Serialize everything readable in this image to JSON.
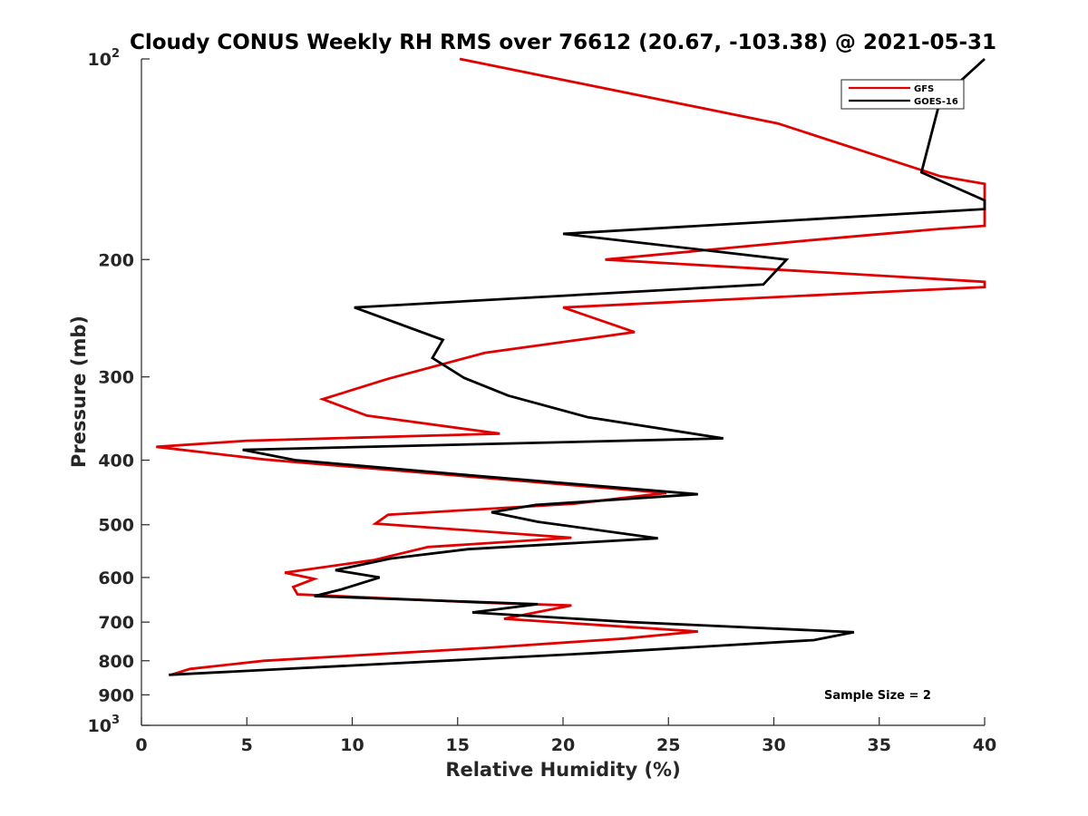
{
  "chart_data": {
    "type": "line",
    "title": "Cloudy CONUS Weekly RH RMS over 76612 (20.67, -103.38) @ 2021-05-31",
    "xlabel": "Relative Humidity (%)",
    "ylabel": "Pressure (mb)",
    "xlim": [
      0,
      40
    ],
    "ylim": [
      100,
      1000
    ],
    "yscale": "log",
    "y_reversed": true,
    "grid": false,
    "legend_position": "top-right",
    "annotation": "Sample Size = 2",
    "x_ticks": [
      {
        "value": 0,
        "label": "0"
      },
      {
        "value": 5,
        "label": "5"
      },
      {
        "value": 10,
        "label": "10"
      },
      {
        "value": 15,
        "label": "15"
      },
      {
        "value": 20,
        "label": "20"
      },
      {
        "value": 25,
        "label": "25"
      },
      {
        "value": 30,
        "label": "30"
      },
      {
        "value": 35,
        "label": "35"
      },
      {
        "value": 40,
        "label": "40"
      }
    ],
    "y_ticks": [
      {
        "value": 100,
        "label": "10",
        "sup": "2"
      },
      {
        "value": 200,
        "label": "200"
      },
      {
        "value": 300,
        "label": "300"
      },
      {
        "value": 400,
        "label": "400"
      },
      {
        "value": 500,
        "label": "500"
      },
      {
        "value": 600,
        "label": "600"
      },
      {
        "value": 700,
        "label": "700"
      },
      {
        "value": 800,
        "label": "800"
      },
      {
        "value": 900,
        "label": "900"
      },
      {
        "value": 1000,
        "label": "10",
        "sup": "3"
      }
    ],
    "series": [
      {
        "name": "GFS",
        "color": "#e00000",
        "points": [
          [
            15.1,
            100
          ],
          [
            30.2,
            125
          ],
          [
            37.9,
            150
          ],
          [
            40.0,
            154
          ],
          [
            40.0,
            178
          ],
          [
            37.8,
            180
          ],
          [
            31.8,
            187
          ],
          [
            22.0,
            200
          ],
          [
            30.0,
            207
          ],
          [
            40.0,
            216
          ],
          [
            40.0,
            220
          ],
          [
            36.0,
            223
          ],
          [
            20.0,
            236
          ],
          [
            23.4,
            257
          ],
          [
            16.3,
            276
          ],
          [
            11.7,
            302
          ],
          [
            8.6,
            324
          ],
          [
            10.7,
            343
          ],
          [
            17.0,
            365
          ],
          [
            5.0,
            374
          ],
          [
            0.7,
            382
          ],
          [
            5.8,
            399
          ],
          [
            24.9,
            448
          ],
          [
            20.5,
            465
          ],
          [
            11.7,
            483
          ],
          [
            11.1,
            498
          ],
          [
            20.4,
            523
          ],
          [
            13.6,
            540
          ],
          [
            11.0,
            565
          ],
          [
            6.8,
            590
          ],
          [
            8.2,
            603
          ],
          [
            7.2,
            620
          ],
          [
            7.4,
            636
          ],
          [
            16.4,
            655
          ],
          [
            20.4,
            661
          ],
          [
            18.7,
            677
          ],
          [
            17.2,
            692
          ],
          [
            26.4,
            723
          ],
          [
            22.9,
            741
          ],
          [
            16.4,
            765
          ],
          [
            5.8,
            800
          ],
          [
            2.3,
            823
          ],
          [
            1.4,
            840
          ]
        ]
      },
      {
        "name": "GOES-16",
        "color": "#000000",
        "points": [
          [
            40.0,
            100
          ],
          [
            37.9,
            115
          ],
          [
            37.0,
            148
          ],
          [
            40.0,
            163
          ],
          [
            40.0,
            168
          ],
          [
            20.0,
            183
          ],
          [
            30.6,
            200
          ],
          [
            29.5,
            218
          ],
          [
            10.1,
            236
          ],
          [
            14.3,
            264
          ],
          [
            13.8,
            281
          ],
          [
            15.3,
            301
          ],
          [
            17.4,
            320
          ],
          [
            21.2,
            345
          ],
          [
            27.6,
            371
          ],
          [
            4.8,
            386
          ],
          [
            7.3,
            400
          ],
          [
            15.8,
            422
          ],
          [
            26.4,
            450
          ],
          [
            18.7,
            467
          ],
          [
            16.6,
            479
          ],
          [
            18.8,
            495
          ],
          [
            24.5,
            524
          ],
          [
            15.5,
            544
          ],
          [
            11.8,
            562
          ],
          [
            9.2,
            585
          ],
          [
            11.3,
            600
          ],
          [
            9.5,
            625
          ],
          [
            8.2,
            640
          ],
          [
            18.8,
            658
          ],
          [
            15.7,
            677
          ],
          [
            23.2,
            700
          ],
          [
            33.8,
            725
          ],
          [
            31.9,
            745
          ],
          [
            21.2,
            780
          ],
          [
            1.3,
            840
          ]
        ]
      }
    ]
  }
}
